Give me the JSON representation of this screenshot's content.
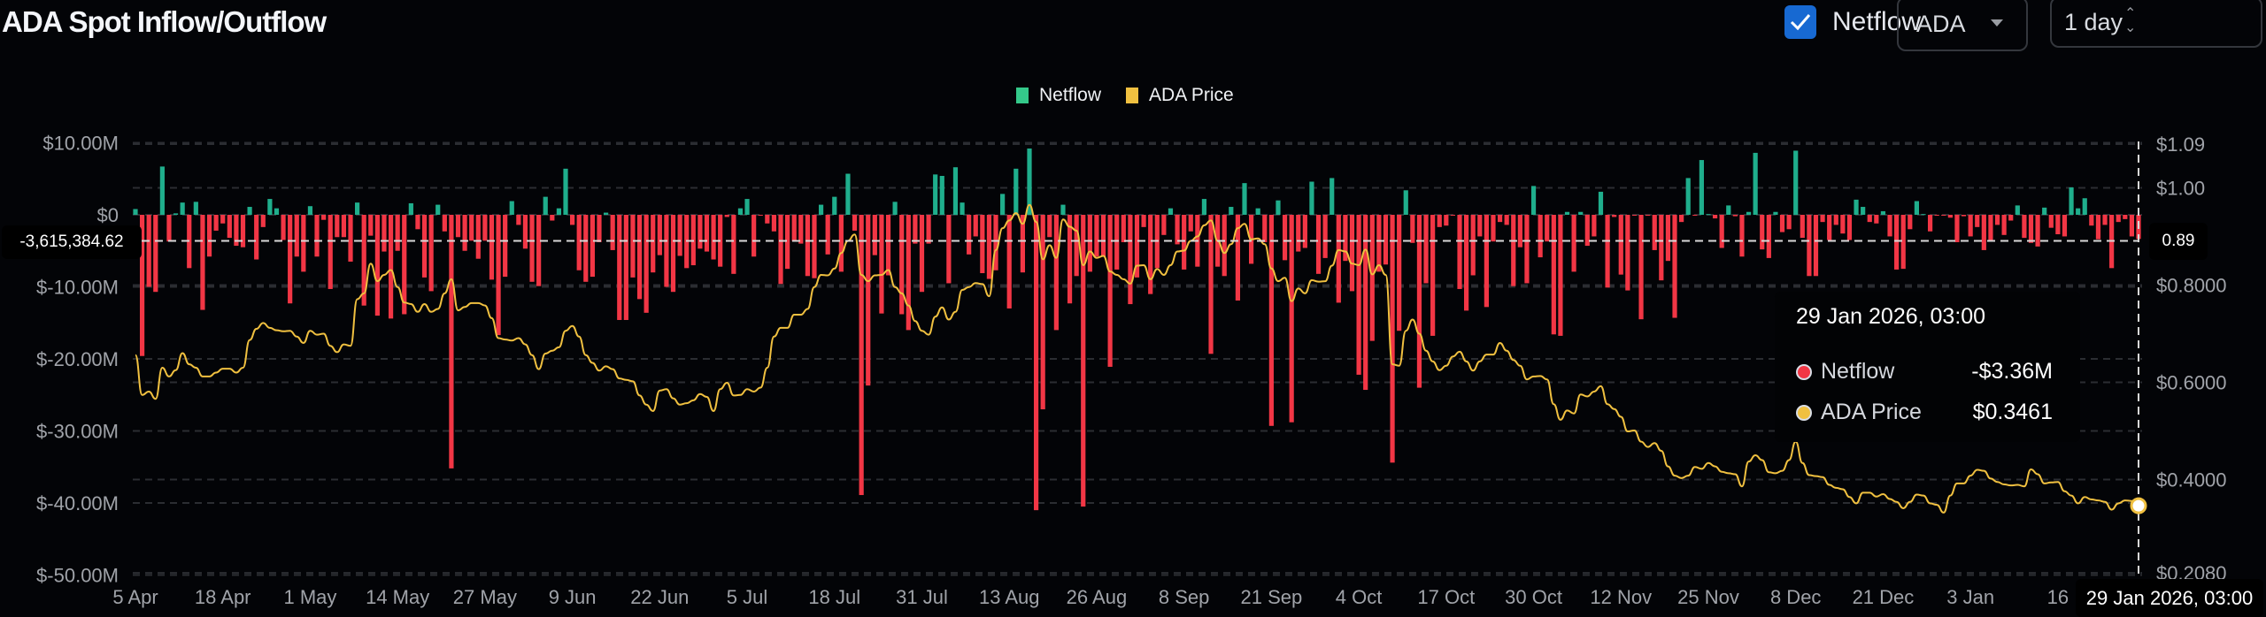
{
  "header": {
    "title": "ADA Spot Inflow/Outflow",
    "netflow_checkbox": {
      "label": "Netflow",
      "checked": true
    },
    "asset_select": {
      "value": "ADA"
    },
    "interval_select": {
      "value": "1 day"
    }
  },
  "colors": {
    "inflow": "#1fae8c",
    "outflow": "#f23645",
    "price": "#f0c040",
    "legend_netflow": "#34c98a",
    "checkbox": "#1769d2"
  },
  "icons": {
    "checkbox": "check-icon",
    "asset_select": "caret-down-icon",
    "interval_select": "up-down-chevron-icon"
  },
  "crosshair": {
    "left_value": "-3,615,384.62",
    "right_value": "0.89",
    "x_label": "29 Jan 2026, 03:00"
  },
  "tooltip": {
    "title": "29 Jan 2026, 03:00",
    "rows": [
      {
        "name": "Netflow",
        "value": "-$3.36M",
        "dot": "#f23645"
      },
      {
        "name": "ADA Price",
        "value": "$0.3461",
        "dot": "#f0c040"
      }
    ]
  },
  "chart_data": {
    "type": "bar+line",
    "title": "",
    "legend": {
      "placement": "top-center",
      "entries": [
        "Netflow",
        "ADA Price"
      ]
    },
    "grid": true,
    "x_tick_labels": [
      "5 Apr",
      "18 Apr",
      "1 May",
      "14 May",
      "27 May",
      "9 Jun",
      "22 Jun",
      "5 Jul",
      "18 Jul",
      "31 Jul",
      "13 Aug",
      "26 Aug",
      "8 Sep",
      "21 Sep",
      "4 Oct",
      "17 Oct",
      "30 Oct",
      "12 Nov",
      "25 Nov",
      "8 Dec",
      "21 Dec",
      "3 Jan",
      "16"
    ],
    "x_tick_every_days": 13,
    "y_left": {
      "unit": "USD millions",
      "ticks": [
        10,
        0,
        -10,
        -20,
        -30,
        -40,
        -50
      ],
      "tick_labels": [
        "$10.00M",
        "$0",
        "$-10.00M",
        "$-20.00M",
        "$-30.00M",
        "$-40.00M",
        "$-50.00M"
      ],
      "range": [
        -50,
        10
      ]
    },
    "y_right": {
      "unit": "USD",
      "ticks": [
        1.09,
        1.0,
        0.8,
        0.6,
        0.4,
        0.208
      ],
      "tick_labels": [
        "$1.09",
        "$1.00",
        "$0.8000",
        "$0.6000",
        "$0.4000",
        "$0.2080"
      ],
      "range": [
        0.208,
        1.09
      ]
    },
    "series": [
      {
        "name": "Netflow",
        "type": "bar",
        "axis": "left",
        "values": [
          0.8,
          -19.6,
          -10,
          -10.7,
          6.7,
          -3.7,
          0.2,
          1.7,
          -7.4,
          1.8,
          -13.2,
          -5.8,
          -2.2,
          -1.2,
          -3.2,
          -4.3,
          -4.5,
          1.1,
          -6.2,
          -1.7,
          2.2,
          0.9,
          -3.5,
          -12.3,
          -5.8,
          -7.9,
          1.2,
          -5.8,
          -0.7,
          -10.3,
          -3.1,
          -3.1,
          -6.5,
          1.7,
          -12.6,
          -2.9,
          -14,
          -5.1,
          -14.4,
          -5,
          -13.8,
          1.6,
          -2,
          -8.7,
          -10.6,
          1.4,
          -2.3,
          -35.2,
          -3.1,
          -5.0,
          -3.6,
          -6.1,
          -3.6,
          -9.0,
          -16.7,
          -8.6,
          1.9,
          -1.4,
          -4.7,
          -9.3,
          -9.9,
          2.5,
          -0.8,
          0.9,
          6.4,
          -1.4,
          -7.7,
          -9.3,
          -8.6,
          -3.8,
          0.3,
          -4.9,
          -14.6,
          -14.6,
          -8.7,
          -11.7,
          -13.6,
          -8.0,
          -5.6,
          -10.0,
          -10.7,
          -5.7,
          -7.4,
          -7.0,
          -4.7,
          -5.1,
          -6.2,
          -7.2,
          -0.3,
          -8.2,
          0.9,
          2.2,
          -5.8,
          -0.1,
          -1.2,
          -2.3,
          -9.6,
          -7.5,
          -3.7,
          -4.0,
          -8.5,
          -8.8,
          1.4,
          -5.5,
          2.5,
          -7.9,
          5.7,
          -2.2,
          -38.9,
          -23.7,
          -5.6,
          -13.7,
          -8.4,
          1.8,
          -13.8,
          -16,
          -4,
          -10.7,
          -4,
          5.6,
          5.4,
          -9.5,
          6.6,
          1.7,
          -5.5,
          -3,
          -8.1,
          -8.9,
          -7.7,
          2.9,
          -13,
          6.4,
          -8.0,
          9.2,
          -41,
          -27,
          -3.1,
          -16,
          1.4,
          -12.3,
          -8.5,
          -40.5,
          -7.9,
          -5.8,
          -5.8,
          -21.1,
          -7.6,
          -3.8,
          -12.4,
          -8.7,
          -1.7,
          -11,
          -7.4,
          -2.8,
          0.9,
          -4.1,
          -7.6,
          -2.3,
          -7.2,
          2.2,
          -19.3,
          -7.2,
          -8.5,
          1.1,
          -11.9,
          4.4,
          -6.8,
          0.9,
          -3.8,
          -29.3,
          2.0,
          -6.3,
          -28.8,
          -5.1,
          -4.6,
          4.6,
          -8.2,
          -6.0,
          5.1,
          -12.2,
          -6.4,
          -10.6,
          -22.2,
          -24.3,
          -17.5,
          -7.9,
          -6.9,
          -34.4,
          -16.1,
          3.4,
          -3.9,
          -24,
          -9.5,
          -16.8,
          -1.7,
          -1.5,
          -0.1,
          -10.3,
          -13.3,
          -8.4,
          -3.0,
          -12.8,
          -3.7,
          -1.0,
          -1.4,
          -9.9,
          -4.5,
          -9.5,
          4.0,
          -5.9,
          -3.7,
          -16.6,
          -16.8,
          0.4,
          -7.9,
          0.4,
          -4.3,
          -3.0,
          3.2,
          -10.1,
          -0.3,
          -8.3,
          -10.5,
          -0.1,
          -14.5,
          -0.1,
          -4.9,
          -9.1,
          -6.4,
          -14.3,
          -1.0,
          5.1,
          -0.1,
          7.6,
          0.1,
          -0.5,
          -4.6,
          1.3,
          -0.2,
          -5.8,
          0.4,
          8.6,
          -4.8,
          -6.0,
          0.4,
          -2.4,
          -2.0,
          8.9,
          -3.2,
          -8.5,
          -8.5,
          -1.0,
          -3.5,
          -1.4,
          -2.6,
          -3.5,
          2.1,
          1.1,
          -1.0,
          -1.2,
          0.5,
          -3.0,
          -7.6,
          -7.5,
          -2.0,
          1.9,
          0.1,
          -2.3,
          -0.1,
          -0.1,
          -0.4,
          -3.8,
          -0.2,
          -3.0,
          -1.7,
          -4.9,
          -3.5,
          -1.4,
          -2.8,
          -0.8,
          1.3,
          -3.2,
          -3.9,
          -4.4,
          1.0,
          -1.8,
          -2.7,
          -3.0,
          3.8,
          0.9,
          2.3,
          -1.5,
          -3.4,
          -1.4,
          -7.4,
          -1.0,
          -0.6,
          -3.0,
          -3.36
        ]
      },
      {
        "name": "ADA Price",
        "type": "line",
        "axis": "right",
        "values": [
          0.656,
          0.574,
          0.581,
          0.566,
          0.63,
          0.612,
          0.625,
          0.66,
          0.637,
          0.63,
          0.612,
          0.612,
          0.62,
          0.628,
          0.628,
          0.62,
          0.63,
          0.687,
          0.71,
          0.722,
          0.712,
          0.707,
          0.705,
          0.706,
          0.694,
          0.681,
          0.706,
          0.698,
          0.7,
          0.675,
          0.662,
          0.678,
          0.675,
          0.771,
          0.783,
          0.844,
          0.808,
          0.821,
          0.831,
          0.796,
          0.764,
          0.761,
          0.745,
          0.761,
          0.745,
          0.751,
          0.783,
          0.812,
          0.748,
          0.755,
          0.763,
          0.763,
          0.758,
          0.732,
          0.691,
          0.688,
          0.686,
          0.691,
          0.678,
          0.656,
          0.627,
          0.659,
          0.665,
          0.672,
          0.706,
          0.716,
          0.694,
          0.656,
          0.64,
          0.624,
          0.633,
          0.627,
          0.608,
          0.605,
          0.602,
          0.573,
          0.554,
          0.541,
          0.583,
          0.586,
          0.567,
          0.554,
          0.557,
          0.563,
          0.576,
          0.57,
          0.541,
          0.586,
          0.599,
          0.573,
          0.574,
          0.586,
          0.581,
          0.589,
          0.63,
          0.694,
          0.712,
          0.712,
          0.739,
          0.739,
          0.751,
          0.796,
          0.821,
          0.82,
          0.834,
          0.866,
          0.891,
          0.904,
          0.821,
          0.808,
          0.82,
          0.821,
          0.831,
          0.796,
          0.783,
          0.758,
          0.726,
          0.706,
          0.698,
          0.735,
          0.754,
          0.729,
          0.745,
          0.79,
          0.796,
          0.804,
          0.802,
          0.777,
          0.872,
          0.917,
          0.933,
          0.948,
          0.926,
          0.965,
          0.93,
          0.853,
          0.882,
          0.856,
          0.935,
          0.92,
          0.912,
          0.841,
          0.869,
          0.856,
          0.86,
          0.828,
          0.821,
          0.812,
          0.803,
          0.84,
          0.841,
          0.812,
          0.833,
          0.821,
          0.841,
          0.869,
          0.871,
          0.891,
          0.9,
          0.923,
          0.933,
          0.891,
          0.866,
          0.884,
          0.917,
          0.926,
          0.894,
          0.896,
          0.884,
          0.834,
          0.808,
          0.815,
          0.767,
          0.793,
          0.783,
          0.81,
          0.807,
          0.808,
          0.84,
          0.872,
          0.869,
          0.844,
          0.841,
          0.873,
          0.822,
          0.841,
          0.821,
          0.637,
          0.634,
          0.706,
          0.729,
          0.7,
          0.665,
          0.643,
          0.625,
          0.634,
          0.653,
          0.663,
          0.643,
          0.624,
          0.643,
          0.657,
          0.657,
          0.681,
          0.665,
          0.646,
          0.634,
          0.606,
          0.612,
          0.613,
          0.606,
          0.555,
          0.523,
          0.542,
          0.536,
          0.575,
          0.571,
          0.581,
          0.592,
          0.555,
          0.545,
          0.529,
          0.499,
          0.501,
          0.478,
          0.467,
          0.475,
          0.459,
          0.427,
          0.408,
          0.403,
          0.408,
          0.426,
          0.422,
          0.434,
          0.427,
          0.416,
          0.413,
          0.411,
          0.386,
          0.437,
          0.45,
          0.44,
          0.415,
          0.413,
          0.418,
          0.44,
          0.478,
          0.434,
          0.409,
          0.407,
          0.405,
          0.389,
          0.383,
          0.38,
          0.364,
          0.351,
          0.373,
          0.373,
          0.365,
          0.37,
          0.36,
          0.354,
          0.341,
          0.354,
          0.369,
          0.367,
          0.351,
          0.348,
          0.332,
          0.367,
          0.392,
          0.392,
          0.408,
          0.42,
          0.418,
          0.402,
          0.395,
          0.39,
          0.388,
          0.389,
          0.386,
          0.421,
          0.411,
          0.392,
          0.394,
          0.395,
          0.376,
          0.367,
          0.351,
          0.364,
          0.359,
          0.357,
          0.354,
          0.338,
          0.351,
          0.357,
          0.356,
          0.3461
        ]
      }
    ]
  }
}
